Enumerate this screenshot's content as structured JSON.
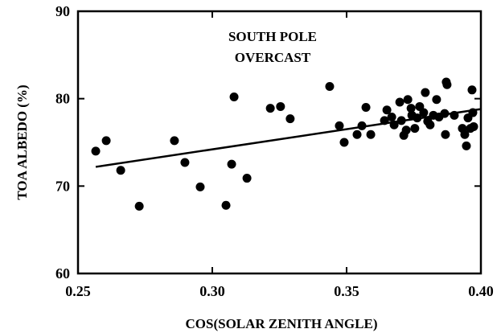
{
  "chart_data": {
    "type": "scatter",
    "xlabel": "COS(SOLAR ZENITH ANGLE)",
    "ylabel": "TOA ALBEDO (%)",
    "annotation": [
      "SOUTH POLE",
      "OVERCAST"
    ],
    "xlim": [
      0.25,
      0.4
    ],
    "ylim": [
      60,
      90
    ],
    "xticks": [
      0.25,
      {
        "value": 0.3,
        "label": "0.30"
      },
      0.35,
      {
        "value": 0.4,
        "label": "0.40"
      }
    ],
    "yticks": [
      60,
      70,
      80,
      90
    ],
    "color": "#000000",
    "x": [
      0.2566,
      0.2605,
      0.2659,
      0.2728,
      0.2859,
      0.2898,
      0.2955,
      0.3051,
      0.3072,
      0.3081,
      0.3129,
      0.3216,
      0.3254,
      0.329,
      0.3437,
      0.3473,
      0.3491,
      0.3539,
      0.3557,
      0.3572,
      0.359,
      0.3641,
      0.365,
      0.3668,
      0.3677,
      0.3698,
      0.3704,
      0.3713,
      0.3722,
      0.3728,
      0.374,
      0.3743,
      0.3754,
      0.3763,
      0.3772,
      0.3787,
      0.3793,
      0.3802,
      0.3811,
      0.3823,
      0.3835,
      0.3844,
      0.3865,
      0.3868,
      0.3871,
      0.3874,
      0.3901,
      0.3931,
      0.394,
      0.3946,
      0.3952,
      0.3961,
      0.3967,
      0.397,
      0.3973
    ],
    "values": [
      74.0,
      75.2,
      71.8,
      67.7,
      75.2,
      72.7,
      69.9,
      67.8,
      72.5,
      80.2,
      70.9,
      78.9,
      79.1,
      77.7,
      81.4,
      76.9,
      75.0,
      75.9,
      76.9,
      79.0,
      75.9,
      77.5,
      78.7,
      77.9,
      77.0,
      79.6,
      77.5,
      75.8,
      76.4,
      79.9,
      78.9,
      78.1,
      76.6,
      77.8,
      79.1,
      78.4,
      80.7,
      77.4,
      77.0,
      78.1,
      79.9,
      77.9,
      78.3,
      75.9,
      81.9,
      81.6,
      78.1,
      76.6,
      75.9,
      74.6,
      77.8,
      76.6,
      81.0,
      78.4,
      76.8
    ],
    "fit": {
      "x": [
        0.2566,
        0.3997
      ],
      "y": [
        72.2,
        78.8
      ]
    }
  }
}
